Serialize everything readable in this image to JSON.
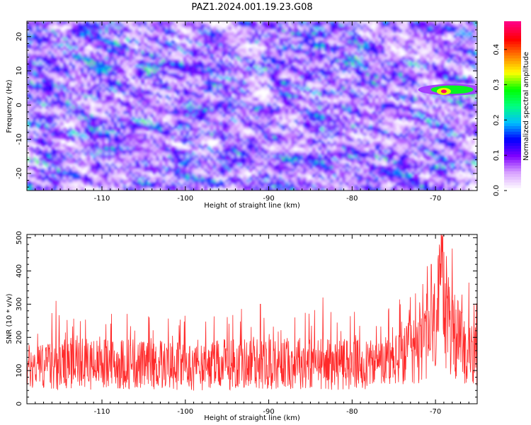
{
  "chart_data": [
    {
      "type": "heatmap",
      "title": "PAZ1.2024.001.19.23.G08",
      "xlabel": "Height of straight line (km)",
      "ylabel": "Frequency (Hz)",
      "xlim": [
        -119,
        -65
      ],
      "ylim": [
        -25,
        24.5
      ],
      "xticks": [
        -110,
        -100,
        -90,
        -80,
        -70
      ],
      "yticks": [
        -20,
        -10,
        0,
        10,
        20
      ],
      "colorbar": {
        "label": "Normalized spectral amplitude",
        "range": [
          0,
          0.48
        ],
        "ticks": [
          0.0,
          0.1,
          0.2,
          0.3,
          0.4
        ],
        "colors": [
          "#ffffff",
          "#d9a3ff",
          "#8000ff",
          "#0000ff",
          "#00bfff",
          "#00ff80",
          "#00ff00",
          "#ffff00",
          "#ff8000",
          "#ff0000",
          "#ff0080"
        ]
      },
      "hotspot": {
        "x": -69,
        "y": 4,
        "value": 0.47
      },
      "secondary_feature": {
        "x": -68,
        "y": 4.5,
        "value": 0.28
      }
    },
    {
      "type": "line",
      "xlabel": "Height of straight line (km)",
      "ylabel": "SNR (10 * v/v)",
      "xlim": [
        -119,
        -65
      ],
      "ylim": [
        0,
        510
      ],
      "xticks": [
        -110,
        -100,
        -90,
        -80,
        -70
      ],
      "yticks": [
        0,
        100,
        200,
        300,
        400,
        500
      ],
      "line_color": "#ff2a2a",
      "series": [
        {
          "x": [
            -119,
            -116,
            -113,
            -110,
            -107,
            -104,
            -101,
            -98,
            -95,
            -92,
            -89,
            -86,
            -83,
            -80,
            -77,
            -74,
            -71,
            -70,
            -69.2,
            -68,
            -66.5,
            -65
          ],
          "values": [
            110,
            115,
            120,
            118,
            122,
            112,
            118,
            108,
            120,
            122,
            118,
            125,
            120,
            118,
            115,
            135,
            190,
            240,
            330,
            205,
            160,
            140
          ]
        }
      ],
      "notable_peaks": [
        {
          "x": -115.5,
          "value": 310
        },
        {
          "x": -91,
          "value": 300
        },
        {
          "x": -83.5,
          "value": 320
        },
        {
          "x": -70.5,
          "value": 420
        },
        {
          "x": -69.2,
          "value": 505
        },
        {
          "x": -66,
          "value": 365
        }
      ]
    }
  ]
}
